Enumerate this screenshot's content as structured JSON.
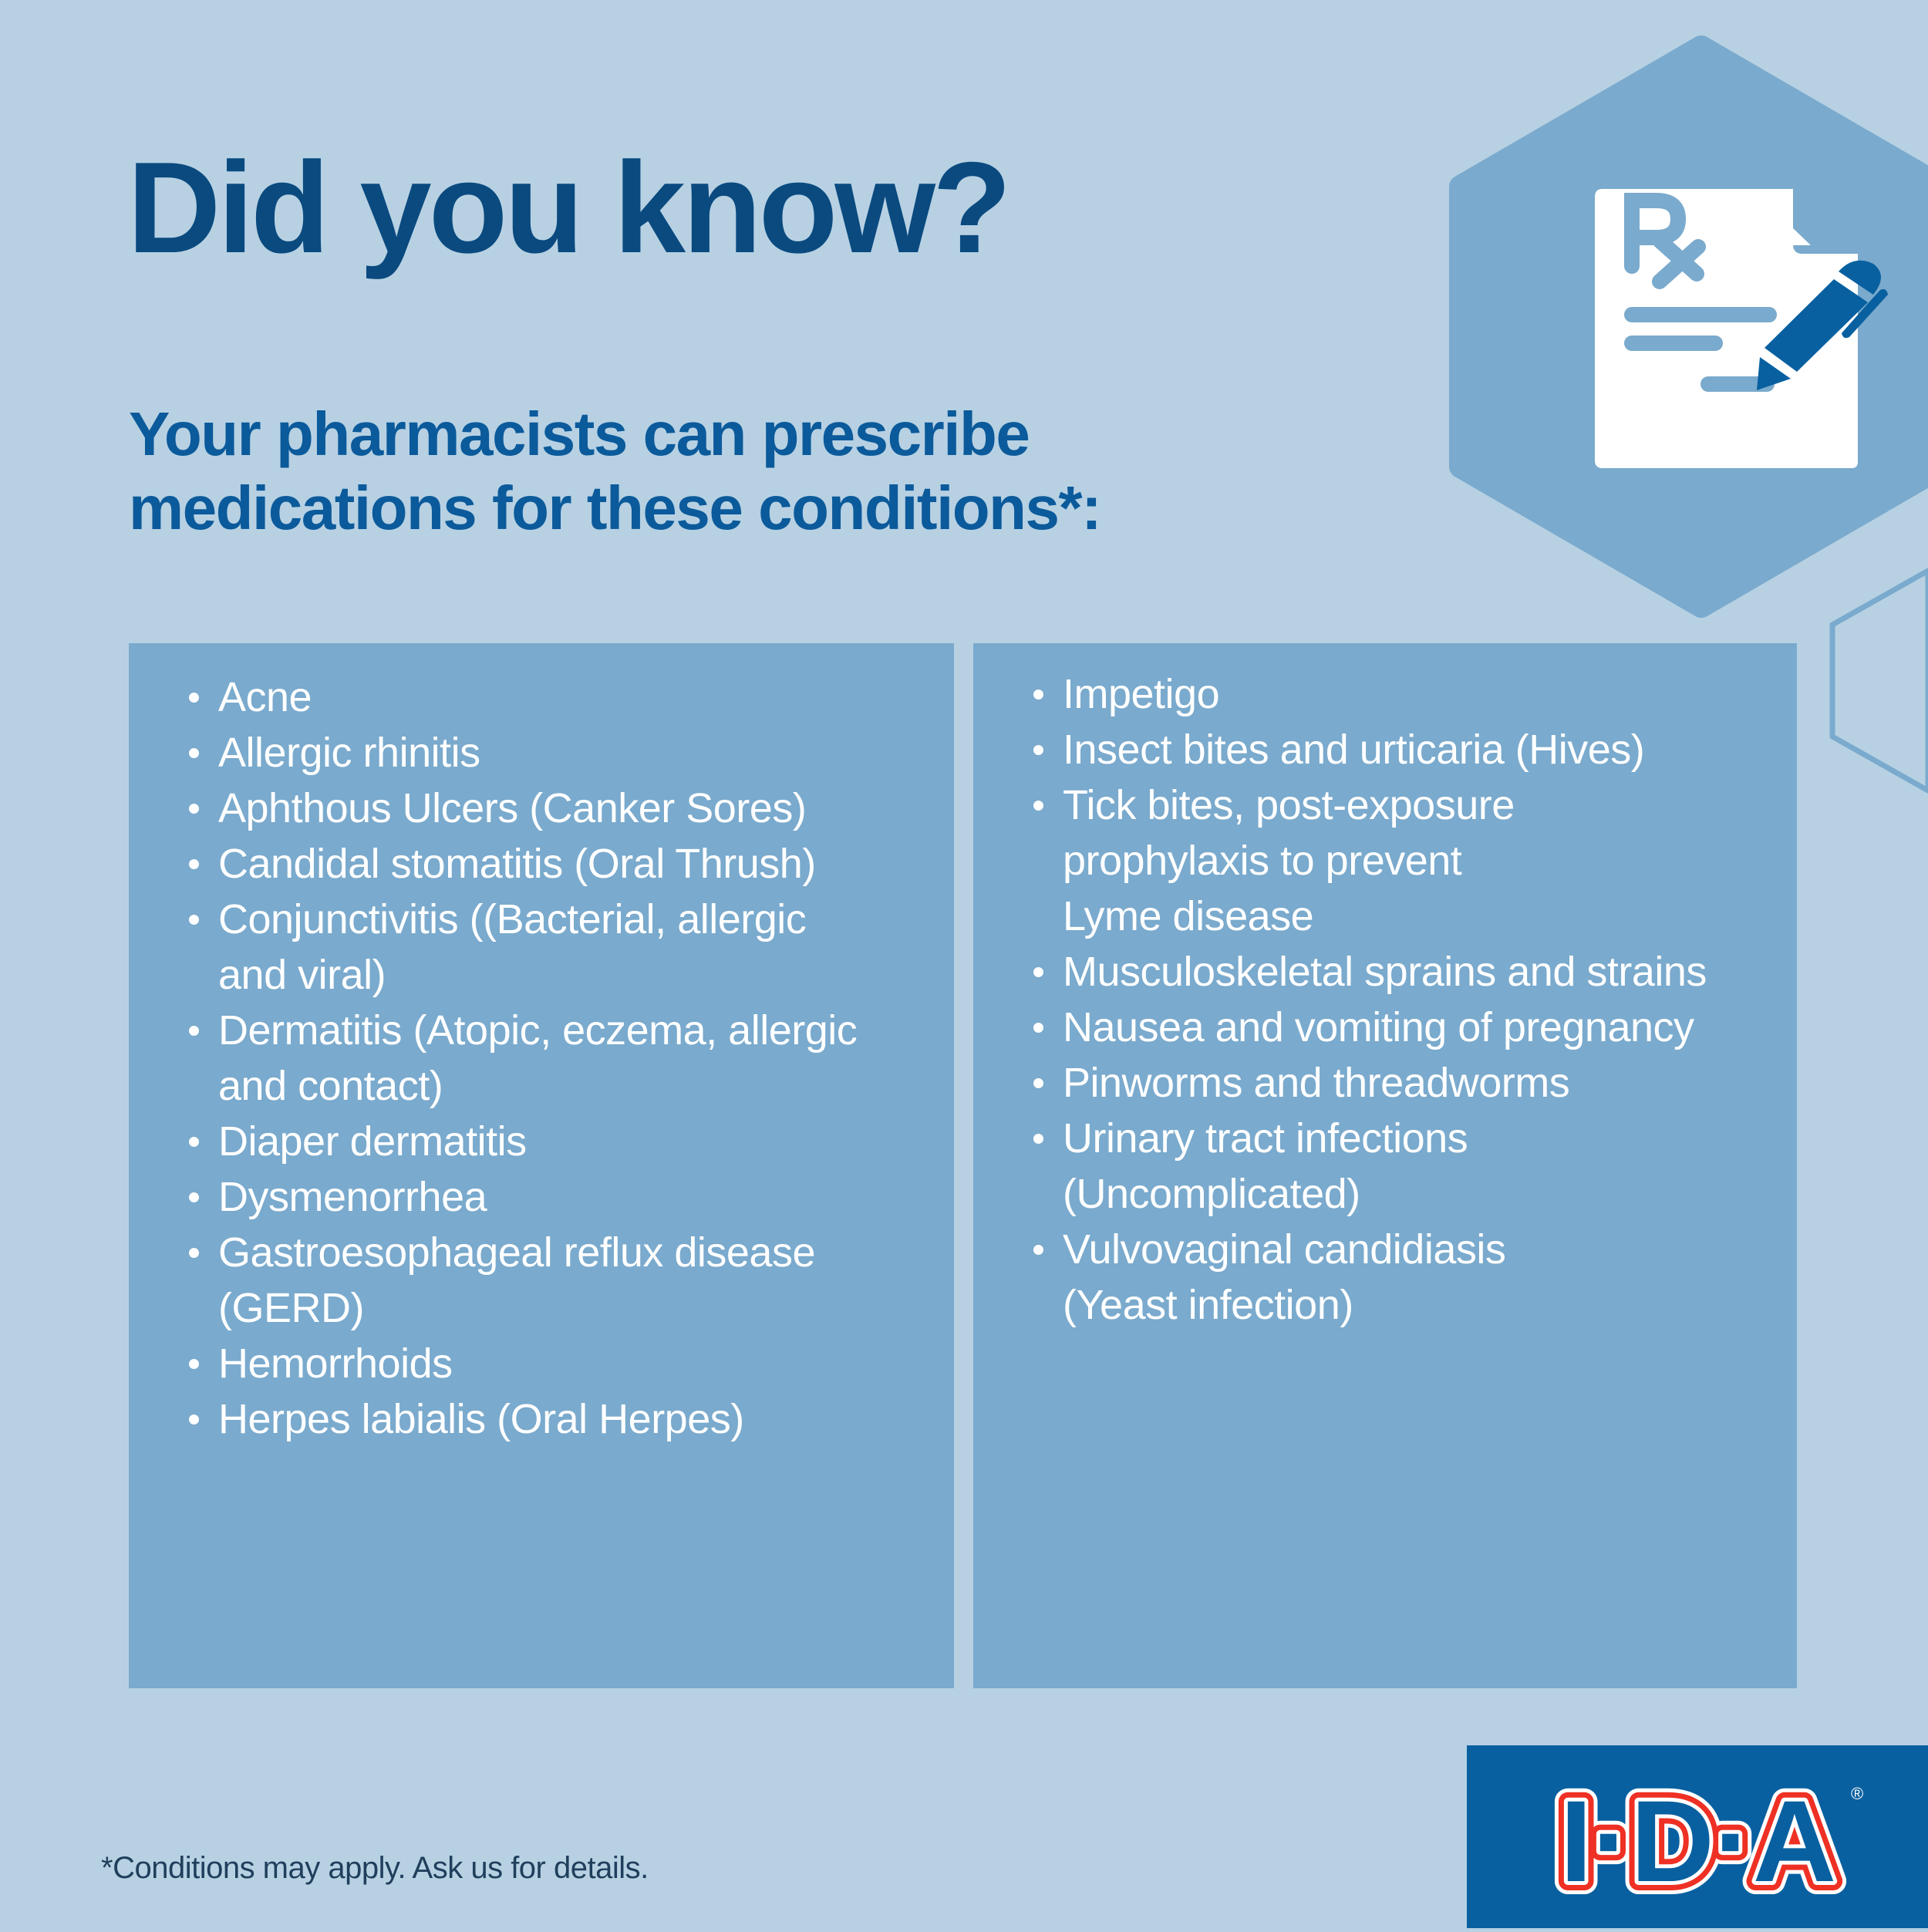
{
  "title": "Did you know?",
  "subtitle": {
    "line1": "Your pharmacists can prescribe",
    "line2": "medications for these conditions*:"
  },
  "conditions_left": [
    {
      "lines": [
        "Acne"
      ]
    },
    {
      "lines": [
        "Allergic rhinitis"
      ]
    },
    {
      "lines": [
        "Aphthous Ulcers (Canker Sores)"
      ]
    },
    {
      "lines": [
        "Candidal stomatitis (Oral Thrush)"
      ]
    },
    {
      "lines": [
        "Conjunctivitis ((Bacterial, allergic",
        "and viral)"
      ]
    },
    {
      "lines": [
        "Dermatitis (Atopic, eczema, allergic",
        "and contact)"
      ]
    },
    {
      "lines": [
        "Diaper dermatitis"
      ]
    },
    {
      "lines": [
        "Dysmenorrhea"
      ]
    },
    {
      "lines": [
        "Gastroesophageal reflux disease",
        "(GERD)"
      ]
    },
    {
      "lines": [
        "Hemorrhoids"
      ]
    },
    {
      "lines": [
        "Herpes labialis (Oral Herpes)"
      ]
    }
  ],
  "conditions_right": [
    {
      "lines": [
        "Impetigo"
      ]
    },
    {
      "lines": [
        "Insect bites and urticaria (Hives)"
      ]
    },
    {
      "lines": [
        "Tick bites, post-exposure",
        "prophylaxis to prevent",
        "Lyme disease"
      ]
    },
    {
      "lines": [
        "Musculoskeletal sprains and strains"
      ]
    },
    {
      "lines": [
        "Nausea and vomiting of pregnancy"
      ]
    },
    {
      "lines": [
        "Pinworms and threadworms"
      ]
    },
    {
      "lines": [
        "Urinary tract infections",
        "(Uncomplicated)"
      ]
    },
    {
      "lines": [
        "Vulvovaginal candidiasis",
        "(Yeast infection)"
      ]
    }
  ],
  "footnote": "*Conditions may apply. Ask us for details.",
  "icon": {
    "name": "prescription-document-pen-icon",
    "symbol": "Rx"
  },
  "logo": {
    "text": "I·D·A",
    "registered": "®"
  },
  "colors": {
    "background": "#b7d1e3",
    "panel": "#7aaacd",
    "title": "#0a4a7f",
    "subtitle": "#0b5a9b",
    "logo_bg": "#0860a0",
    "logo_red": "#ee3124",
    "pen": "#0860a0"
  }
}
